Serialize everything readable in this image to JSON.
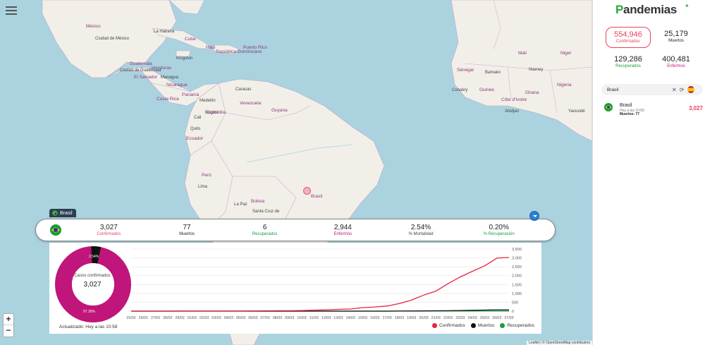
{
  "map": {
    "labels": [
      {
        "t": "México",
        "c": "country"
      },
      {
        "t": "Ciudad de México",
        "c": "city"
      },
      {
        "t": "Guatemala",
        "c": "country"
      },
      {
        "t": "Ciudad de Guatemala",
        "c": "city"
      },
      {
        "t": "Honduras",
        "c": "country"
      },
      {
        "t": "El Salvador",
        "c": "country"
      },
      {
        "t": "Managua",
        "c": "city"
      },
      {
        "t": "Nicaragua",
        "c": "country"
      },
      {
        "t": "Costa Rica",
        "c": "country"
      },
      {
        "t": "Panamá",
        "c": "country"
      },
      {
        "t": "La Habana",
        "c": "city"
      },
      {
        "t": "Cuba",
        "c": "country"
      },
      {
        "t": "Kingston",
        "c": "city"
      },
      {
        "t": "Haïti",
        "c": "country"
      },
      {
        "t": "República Dominicana",
        "c": "country"
      },
      {
        "t": "Puerto Rico",
        "c": "country"
      },
      {
        "t": "Caracas",
        "c": "city"
      },
      {
        "t": "Venezuela",
        "c": "country"
      },
      {
        "t": "Medellín",
        "c": "city"
      },
      {
        "t": "Bogotá",
        "c": "city"
      },
      {
        "t": "Colombia",
        "c": "country"
      },
      {
        "t": "Cali",
        "c": "city"
      },
      {
        "t": "Quito",
        "c": "city"
      },
      {
        "t": "Ecuador",
        "c": "country"
      },
      {
        "t": "Guyana",
        "c": "country"
      },
      {
        "t": "Perú",
        "c": "country"
      },
      {
        "t": "Lima",
        "c": "city"
      },
      {
        "t": "Bolivia",
        "c": "country"
      },
      {
        "t": "La Paz",
        "c": "city"
      },
      {
        "t": "Santa Cruz de",
        "c": "city"
      },
      {
        "t": "Brasil",
        "c": "country"
      },
      {
        "t": "Sénégal",
        "c": "country"
      },
      {
        "t": "Bamako",
        "c": "city"
      },
      {
        "t": "Niamey",
        "c": "city"
      },
      {
        "t": "Conakry",
        "c": "city"
      },
      {
        "t": "Guinée",
        "c": "country"
      },
      {
        "t": "Côte d'Ivoire",
        "c": "country"
      },
      {
        "t": "Abidjan",
        "c": "city"
      },
      {
        "t": "Nigeria",
        "c": "country"
      },
      {
        "t": "Yaoundé",
        "c": "city"
      },
      {
        "t": "Mali",
        "c": "country"
      },
      {
        "t": "Niger",
        "c": "country"
      },
      {
        "t": "Ghana",
        "c": "country"
      }
    ],
    "attribution": "Leaflet | © OpenStreetMap contributors"
  },
  "country_tab": {
    "label": "Brasil"
  },
  "stats": [
    {
      "value": "3,027",
      "label": "Confirmados",
      "color": "#e8425a"
    },
    {
      "value": "77",
      "label": "Muertos",
      "color": "#222222"
    },
    {
      "value": "6",
      "label": "Recuperados",
      "color": "#1a9c3a"
    },
    {
      "value": "2,944",
      "label": "Enfermos",
      "color": "#c0157a"
    },
    {
      "value": "2.54%",
      "label": "% Mortalidad",
      "color": "#444444"
    },
    {
      "value": "0.20%",
      "label": "% Recuperación",
      "color": "#1a9c3a"
    }
  ],
  "donut": {
    "center_label": "Casos confirmados",
    "center_value": "3,027",
    "pct_main": "97.26%",
    "pct_small": "2.54%"
  },
  "updated": "Actualizado: Hoy a las 10:58",
  "legend": [
    {
      "label": "Confirmados",
      "color": "#e8223f"
    },
    {
      "label": "Muertos",
      "color": "#111111"
    },
    {
      "label": "Recuperados",
      "color": "#1a9c3a"
    }
  ],
  "chart_data": {
    "type": "line",
    "categories": [
      "25/02",
      "26/02",
      "27/02",
      "28/02",
      "29/02",
      "01/03",
      "02/03",
      "03/03",
      "04/03",
      "05/03",
      "06/03",
      "07/03",
      "08/03",
      "09/03",
      "10/03",
      "11/03",
      "12/03",
      "13/03",
      "14/03",
      "15/03",
      "16/03",
      "17/03",
      "18/03",
      "19/03",
      "20/03",
      "21/03",
      "22/03",
      "23/03",
      "24/03",
      "25/03",
      "26/03",
      "27/03"
    ],
    "series": [
      {
        "name": "Confirmados",
        "color": "#e8223f",
        "values": [
          1,
          1,
          1,
          1,
          2,
          2,
          2,
          2,
          4,
          8,
          13,
          19,
          25,
          25,
          34,
          52,
          77,
          98,
          121,
          200,
          234,
          291,
          428,
          621,
          904,
          1128,
          1546,
          1924,
          2247,
          2554,
          2985,
          3027
        ]
      },
      {
        "name": "Muertos",
        "color": "#111111",
        "values": [
          0,
          0,
          0,
          0,
          0,
          0,
          0,
          0,
          0,
          0,
          0,
          0,
          0,
          0,
          0,
          0,
          0,
          0,
          0,
          0,
          0,
          1,
          3,
          6,
          11,
          18,
          25,
          34,
          46,
          59,
          77,
          77
        ]
      },
      {
        "name": "Recuperados",
        "color": "#1a9c3a",
        "values": [
          0,
          0,
          0,
          0,
          0,
          0,
          0,
          0,
          0,
          0,
          0,
          0,
          0,
          0,
          0,
          0,
          0,
          0,
          0,
          0,
          1,
          1,
          2,
          2,
          2,
          2,
          2,
          2,
          2,
          2,
          6,
          6
        ]
      }
    ],
    "yticks": [
      "0",
      "500",
      "1,000",
      "1,500",
      "2,000",
      "2,500",
      "3,000",
      "3,500"
    ],
    "ylim": [
      0,
      3500
    ]
  },
  "sidebar": {
    "brand": "andemias",
    "brand_initial": "P",
    "tiles": {
      "confirmed": {
        "value": "554,946",
        "label": "Confirmados",
        "color": "#e8425a"
      },
      "deaths": {
        "value": "25,179",
        "label": "Muertos",
        "color": "#222222"
      },
      "recovered": {
        "value": "129,286",
        "label": "Recuperados",
        "color": "#1a9c3a"
      },
      "sick": {
        "value": "400,481",
        "label": "Enfermos",
        "color": "#c0157a"
      }
    },
    "search": {
      "value": "Brasil"
    },
    "result": {
      "name": "Brasil",
      "time": "Hoy a las 10:58",
      "deaths": "Muertos: 77",
      "count": "3,027"
    }
  }
}
